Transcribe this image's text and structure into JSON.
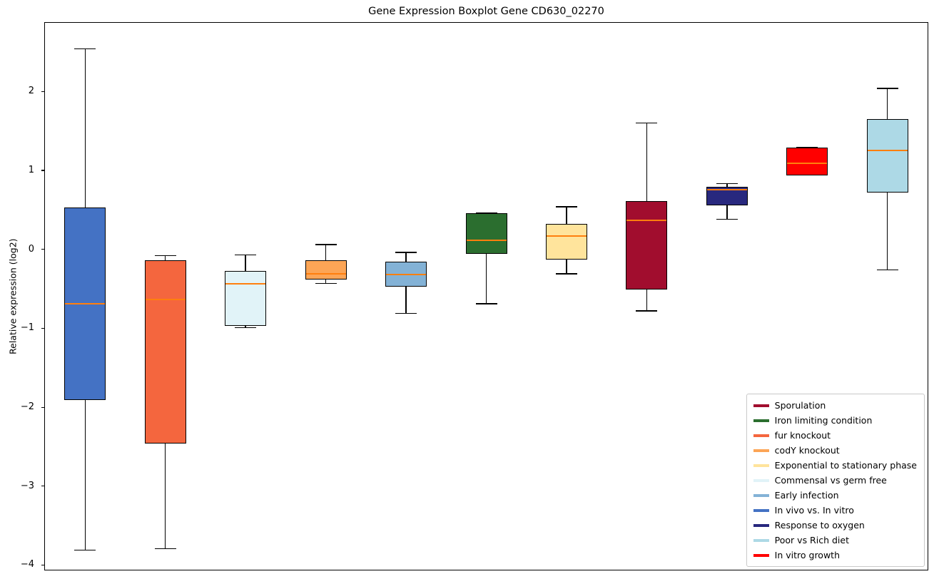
{
  "chart_data": {
    "type": "boxplot",
    "title": "Gene Expression Boxplot Gene CD630_02270",
    "xlabel": "",
    "ylabel": "Relative expression (log2)",
    "ylim": [
      -4.05,
      2.88
    ],
    "grid": false,
    "legend_position": "lower right",
    "median_color": "#FF7F0E",
    "yticks": [
      {
        "value": 2,
        "label": "2"
      },
      {
        "value": 1,
        "label": "1"
      },
      {
        "value": 0,
        "label": "0"
      },
      {
        "value": -1,
        "label": "−1"
      },
      {
        "value": -2,
        "label": "−2"
      },
      {
        "value": -3,
        "label": "−3"
      },
      {
        "value": -4,
        "label": "−4"
      }
    ],
    "boxes": [
      {
        "condition": "In vivo vs. In vitro",
        "color": "#4472C4",
        "whisker_low": -3.8,
        "q1": -1.9,
        "median": -0.68,
        "q3": 0.54,
        "whisker_high": 2.55
      },
      {
        "condition": "fur knockout",
        "color": "#F4663E",
        "whisker_low": -3.78,
        "q1": -2.45,
        "median": -0.63,
        "q3": -0.13,
        "whisker_high": -0.07
      },
      {
        "condition": "Commensal vs germ free",
        "color": "#E1F3F8",
        "whisker_low": -0.98,
        "q1": -0.96,
        "median": -0.43,
        "q3": -0.26,
        "whisker_high": -0.06
      },
      {
        "condition": "codY knockout",
        "color": "#FCA556",
        "whisker_low": -0.42,
        "q1": -0.37,
        "median": -0.3,
        "q3": -0.13,
        "whisker_high": 0.07
      },
      {
        "condition": "Early infection",
        "color": "#83B2D6",
        "whisker_low": -0.8,
        "q1": -0.46,
        "median": -0.31,
        "q3": -0.15,
        "whisker_high": -0.03
      },
      {
        "condition": "Iron limiting condition",
        "color": "#2B6E2F",
        "whisker_low": -0.68,
        "q1": -0.05,
        "median": 0.12,
        "q3": 0.47,
        "whisker_high": 0.47
      },
      {
        "condition": "Exponential to stationary phase",
        "color": "#FFE49C",
        "whisker_low": -0.3,
        "q1": -0.12,
        "median": 0.18,
        "q3": 0.33,
        "whisker_high": 0.55
      },
      {
        "condition": "Sporulation",
        "color": "#A10D2E",
        "whisker_low": -0.77,
        "q1": -0.5,
        "median": 0.38,
        "q3": 0.62,
        "whisker_high": 1.61
      },
      {
        "condition": "Response to oxygen",
        "color": "#28287E",
        "whisker_low": 0.39,
        "q1": 0.57,
        "median": 0.77,
        "q3": 0.8,
        "whisker_high": 0.84
      },
      {
        "condition": "In vitro growth",
        "color": "#FF0000",
        "whisker_low": 0.95,
        "q1": 0.95,
        "median": 1.1,
        "q3": 1.3,
        "whisker_high": 1.3
      },
      {
        "condition": "Poor vs Rich diet",
        "color": "#ADD9E6",
        "whisker_low": -0.25,
        "q1": 0.73,
        "median": 1.26,
        "q3": 1.66,
        "whisker_high": 2.05
      }
    ],
    "legend": [
      {
        "label": "Sporulation",
        "color": "#A10D2E"
      },
      {
        "label": "Iron limiting condition",
        "color": "#2B6E2F"
      },
      {
        "label": "fur knockout",
        "color": "#F4663E"
      },
      {
        "label": "codY knockout",
        "color": "#FCA556"
      },
      {
        "label": "Exponential to stationary phase",
        "color": "#FFE49C"
      },
      {
        "label": "Commensal vs germ free",
        "color": "#E1F3F8"
      },
      {
        "label": "Early infection",
        "color": "#83B2D6"
      },
      {
        "label": "In vivo vs. In vitro",
        "color": "#4472C4"
      },
      {
        "label": "Response to oxygen",
        "color": "#28287E"
      },
      {
        "label": "Poor vs Rich diet",
        "color": "#ADD9E6"
      },
      {
        "label": "In vitro growth",
        "color": "#FF0000"
      }
    ]
  }
}
